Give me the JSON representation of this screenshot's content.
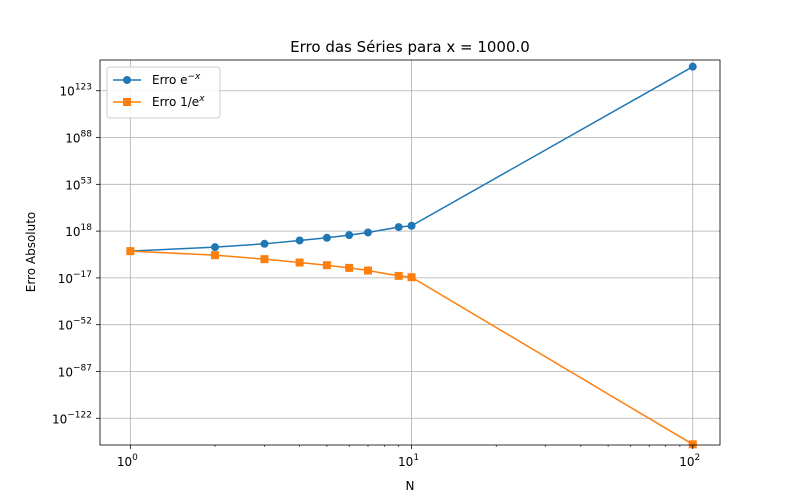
{
  "chart_data": {
    "type": "line",
    "title": "Erro das Séries para x = 1000.0",
    "xlabel": "N",
    "ylabel": "Erro Absoluto",
    "x_scale": "log",
    "y_scale": "log",
    "xlim": [
      0.78,
      125
    ],
    "ylim_exp": [
      -142,
      146
    ],
    "x_ticks": [
      {
        "value": 1,
        "label_base": "10",
        "label_exp": "0"
      },
      {
        "value": 10,
        "label_base": "10",
        "label_exp": "1"
      },
      {
        "value": 100,
        "label_base": "10",
        "label_exp": "2"
      }
    ],
    "y_ticks": [
      {
        "exp": -122,
        "label_base": "10",
        "label_exp": "−122"
      },
      {
        "exp": -87,
        "label_base": "10",
        "label_exp": "−87"
      },
      {
        "exp": -52,
        "label_base": "10",
        "label_exp": "−52"
      },
      {
        "exp": -17,
        "label_base": "10",
        "label_exp": "−17"
      },
      {
        "exp": 18,
        "label_base": "10",
        "label_exp": "18"
      },
      {
        "exp": 53,
        "label_base": "10",
        "label_exp": "53"
      },
      {
        "exp": 88,
        "label_base": "10",
        "label_exp": "88"
      },
      {
        "exp": 123,
        "label_base": "10",
        "label_exp": "123"
      }
    ],
    "grid": true,
    "legend_position": "top-left",
    "series": [
      {
        "name": "Erro e^{-x}",
        "legend_base": "Erro e",
        "legend_sup": "−x",
        "color": "#1f77b4",
        "marker": "circle",
        "x": [
          1,
          2,
          3,
          4,
          5,
          6,
          7,
          9,
          10,
          100
        ],
        "y_exp": [
          3,
          6,
          8.5,
          11,
          13,
          15,
          17,
          21,
          22,
          141
        ]
      },
      {
        "name": "Erro 1/e^{x}",
        "legend_base": "Erro 1/e",
        "legend_sup": "x",
        "color": "#ff7f0e",
        "marker": "square",
        "x": [
          1,
          2,
          3,
          4,
          5,
          6,
          7,
          9,
          10,
          100
        ],
        "y_exp": [
          3,
          0,
          -3,
          -5.5,
          -7.5,
          -9.5,
          -11.5,
          -15.5,
          -16.5,
          -141.5
        ]
      }
    ]
  }
}
